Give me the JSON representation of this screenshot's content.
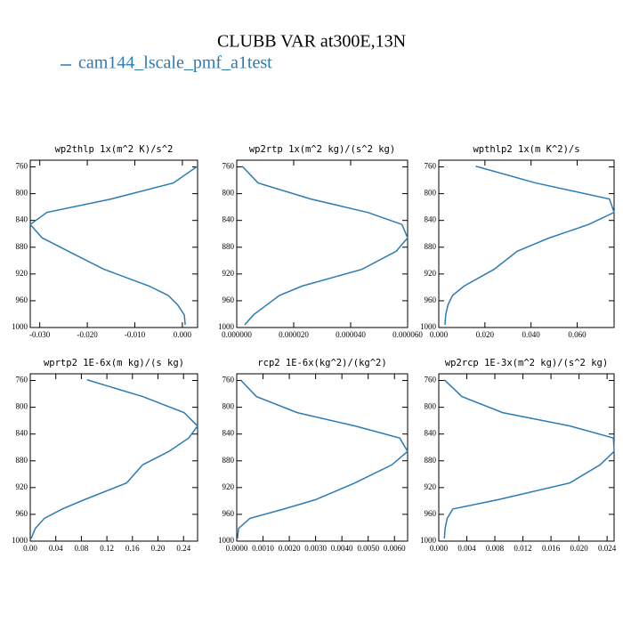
{
  "title": "CLUBB VAR at300E,13N",
  "legend": {
    "label": "cam144_lscale_pmf_a1test",
    "color": "#2b7bb4"
  },
  "chart_data": [
    {
      "type": "line",
      "title": "wp2thlp  1x(m^2 K)/s^2",
      "levels": [
        759,
        784,
        808,
        828,
        846,
        866,
        886,
        913,
        938,
        952,
        966,
        981,
        996
      ],
      "values": [
        0.0032,
        -0.0019,
        -0.015,
        -0.0285,
        -0.032,
        -0.0295,
        -0.024,
        -0.0165,
        -0.007,
        -0.003,
        -0.001,
        0.0004,
        0.0006
      ],
      "xlim": [
        -0.032,
        0.0032
      ],
      "xticks": [
        {
          "value": -0.03,
          "label": "-0.030"
        },
        {
          "value": -0.02,
          "label": "-0.020"
        },
        {
          "value": -0.01,
          "label": "-0.010"
        },
        {
          "value": 0,
          "label": "0.000"
        }
      ],
      "ylim": [
        1000,
        750
      ],
      "yticks": [
        760,
        800,
        840,
        880,
        920,
        960,
        1000
      ]
    },
    {
      "type": "line",
      "title": "wp2rtp  1x(m^2 kg)/(s^2 kg)",
      "levels": [
        759,
        784,
        808,
        828,
        846,
        866,
        886,
        913,
        938,
        952,
        966,
        981,
        996
      ],
      "values": [
        1.9e-06,
        7.5e-06,
        2.6e-05,
        4.6e-05,
        5.8e-05,
        6e-05,
        5.6e-05,
        4.4e-05,
        2.3e-05,
        1.5e-05,
        1.06e-05,
        5.9e-06,
        2.8e-06
      ],
      "xlim": [
        0,
        6e-05
      ],
      "xticks": [
        {
          "value": 0,
          "label": "0.000000"
        },
        {
          "value": 2e-05,
          "label": "0.000020"
        },
        {
          "value": 4e-05,
          "label": "0.000040"
        },
        {
          "value": 6e-05,
          "label": "0.000060"
        }
      ],
      "ylim": [
        1000,
        750
      ],
      "yticks": [
        760,
        800,
        840,
        880,
        920,
        960,
        1000
      ]
    },
    {
      "type": "line",
      "title": "wpthlp2  1x(m K^2)/s",
      "levels": [
        759,
        784,
        808,
        828,
        846,
        866,
        886,
        913,
        938,
        952,
        966,
        981,
        996
      ],
      "values": [
        0.016,
        0.042,
        0.074,
        0.076,
        0.065,
        0.048,
        0.034,
        0.024,
        0.011,
        0.006,
        0.004,
        0.003,
        0.0027
      ],
      "xlim": [
        0,
        0.076
      ],
      "xticks": [
        {
          "value": 0,
          "label": "0.000"
        },
        {
          "value": 0.02,
          "label": "0.020"
        },
        {
          "value": 0.04,
          "label": "0.040"
        },
        {
          "value": 0.06,
          "label": "0.060"
        }
      ],
      "ylim": [
        1000,
        750
      ],
      "yticks": [
        760,
        800,
        840,
        880,
        920,
        960,
        1000
      ]
    },
    {
      "type": "line",
      "title": "wprtp2  1E-6x(m kg)/(s kg)",
      "levels": [
        759,
        784,
        808,
        828,
        846,
        866,
        886,
        913,
        938,
        952,
        966,
        981,
        996
      ],
      "values": [
        0.089,
        0.176,
        0.241,
        0.262,
        0.248,
        0.217,
        0.176,
        0.151,
        0.085,
        0.05,
        0.022,
        0.008,
        0.0014
      ],
      "xlim": [
        0,
        0.262
      ],
      "xticks": [
        {
          "value": 0,
          "label": "0.00"
        },
        {
          "value": 0.04,
          "label": "0.04"
        },
        {
          "value": 0.08,
          "label": "0.08"
        },
        {
          "value": 0.12,
          "label": "0.12"
        },
        {
          "value": 0.16,
          "label": "0.16"
        },
        {
          "value": 0.2,
          "label": "0.20"
        },
        {
          "value": 0.24,
          "label": "0.24"
        }
      ],
      "ylim": [
        1000,
        750
      ],
      "yticks": [
        760,
        800,
        840,
        880,
        920,
        960,
        1000
      ]
    },
    {
      "type": "line",
      "title": "rcp2  1E-6x(kg^2)/(kg^2)",
      "levels": [
        759,
        784,
        808,
        828,
        846,
        866,
        886,
        913,
        938,
        952,
        966,
        981,
        996
      ],
      "values": [
        0.00014,
        0.00075,
        0.0023,
        0.0045,
        0.0062,
        0.0065,
        0.0059,
        0.0045,
        0.003,
        0.0018,
        0.0005,
        7e-05,
        3e-05
      ],
      "xlim": [
        0,
        0.0065
      ],
      "xticks": [
        {
          "value": 0,
          "label": "0.0000"
        },
        {
          "value": 0.001,
          "label": "0.0010"
        },
        {
          "value": 0.002,
          "label": "0.0020"
        },
        {
          "value": 0.003,
          "label": "0.0030"
        },
        {
          "value": 0.004,
          "label": "0.0040"
        },
        {
          "value": 0.005,
          "label": "0.0050"
        },
        {
          "value": 0.006,
          "label": "0.0060"
        }
      ],
      "ylim": [
        1000,
        750
      ],
      "yticks": [
        760,
        800,
        840,
        880,
        920,
        960,
        1000
      ]
    },
    {
      "type": "line",
      "title": "wp2rcp  1E-3x(m^2 kg)/(s^2 kg)",
      "levels": [
        759,
        784,
        808,
        828,
        846,
        866,
        886,
        913,
        938,
        952,
        966,
        981,
        996
      ],
      "values": [
        0.0008,
        0.0033,
        0.0091,
        0.0187,
        0.0249,
        0.025,
        0.023,
        0.0187,
        0.0085,
        0.002,
        0.0012,
        0.0009,
        0.0008
      ],
      "xlim": [
        0,
        0.025
      ],
      "xticks": [
        {
          "value": 0,
          "label": "0.000"
        },
        {
          "value": 0.004,
          "label": "0.004"
        },
        {
          "value": 0.008,
          "label": "0.008"
        },
        {
          "value": 0.012,
          "label": "0.012"
        },
        {
          "value": 0.016,
          "label": "0.016"
        },
        {
          "value": 0.02,
          "label": "0.020"
        },
        {
          "value": 0.024,
          "label": "0.024"
        }
      ],
      "ylim": [
        1000,
        750
      ],
      "yticks": [
        760,
        800,
        840,
        880,
        920,
        960,
        1000
      ]
    }
  ]
}
